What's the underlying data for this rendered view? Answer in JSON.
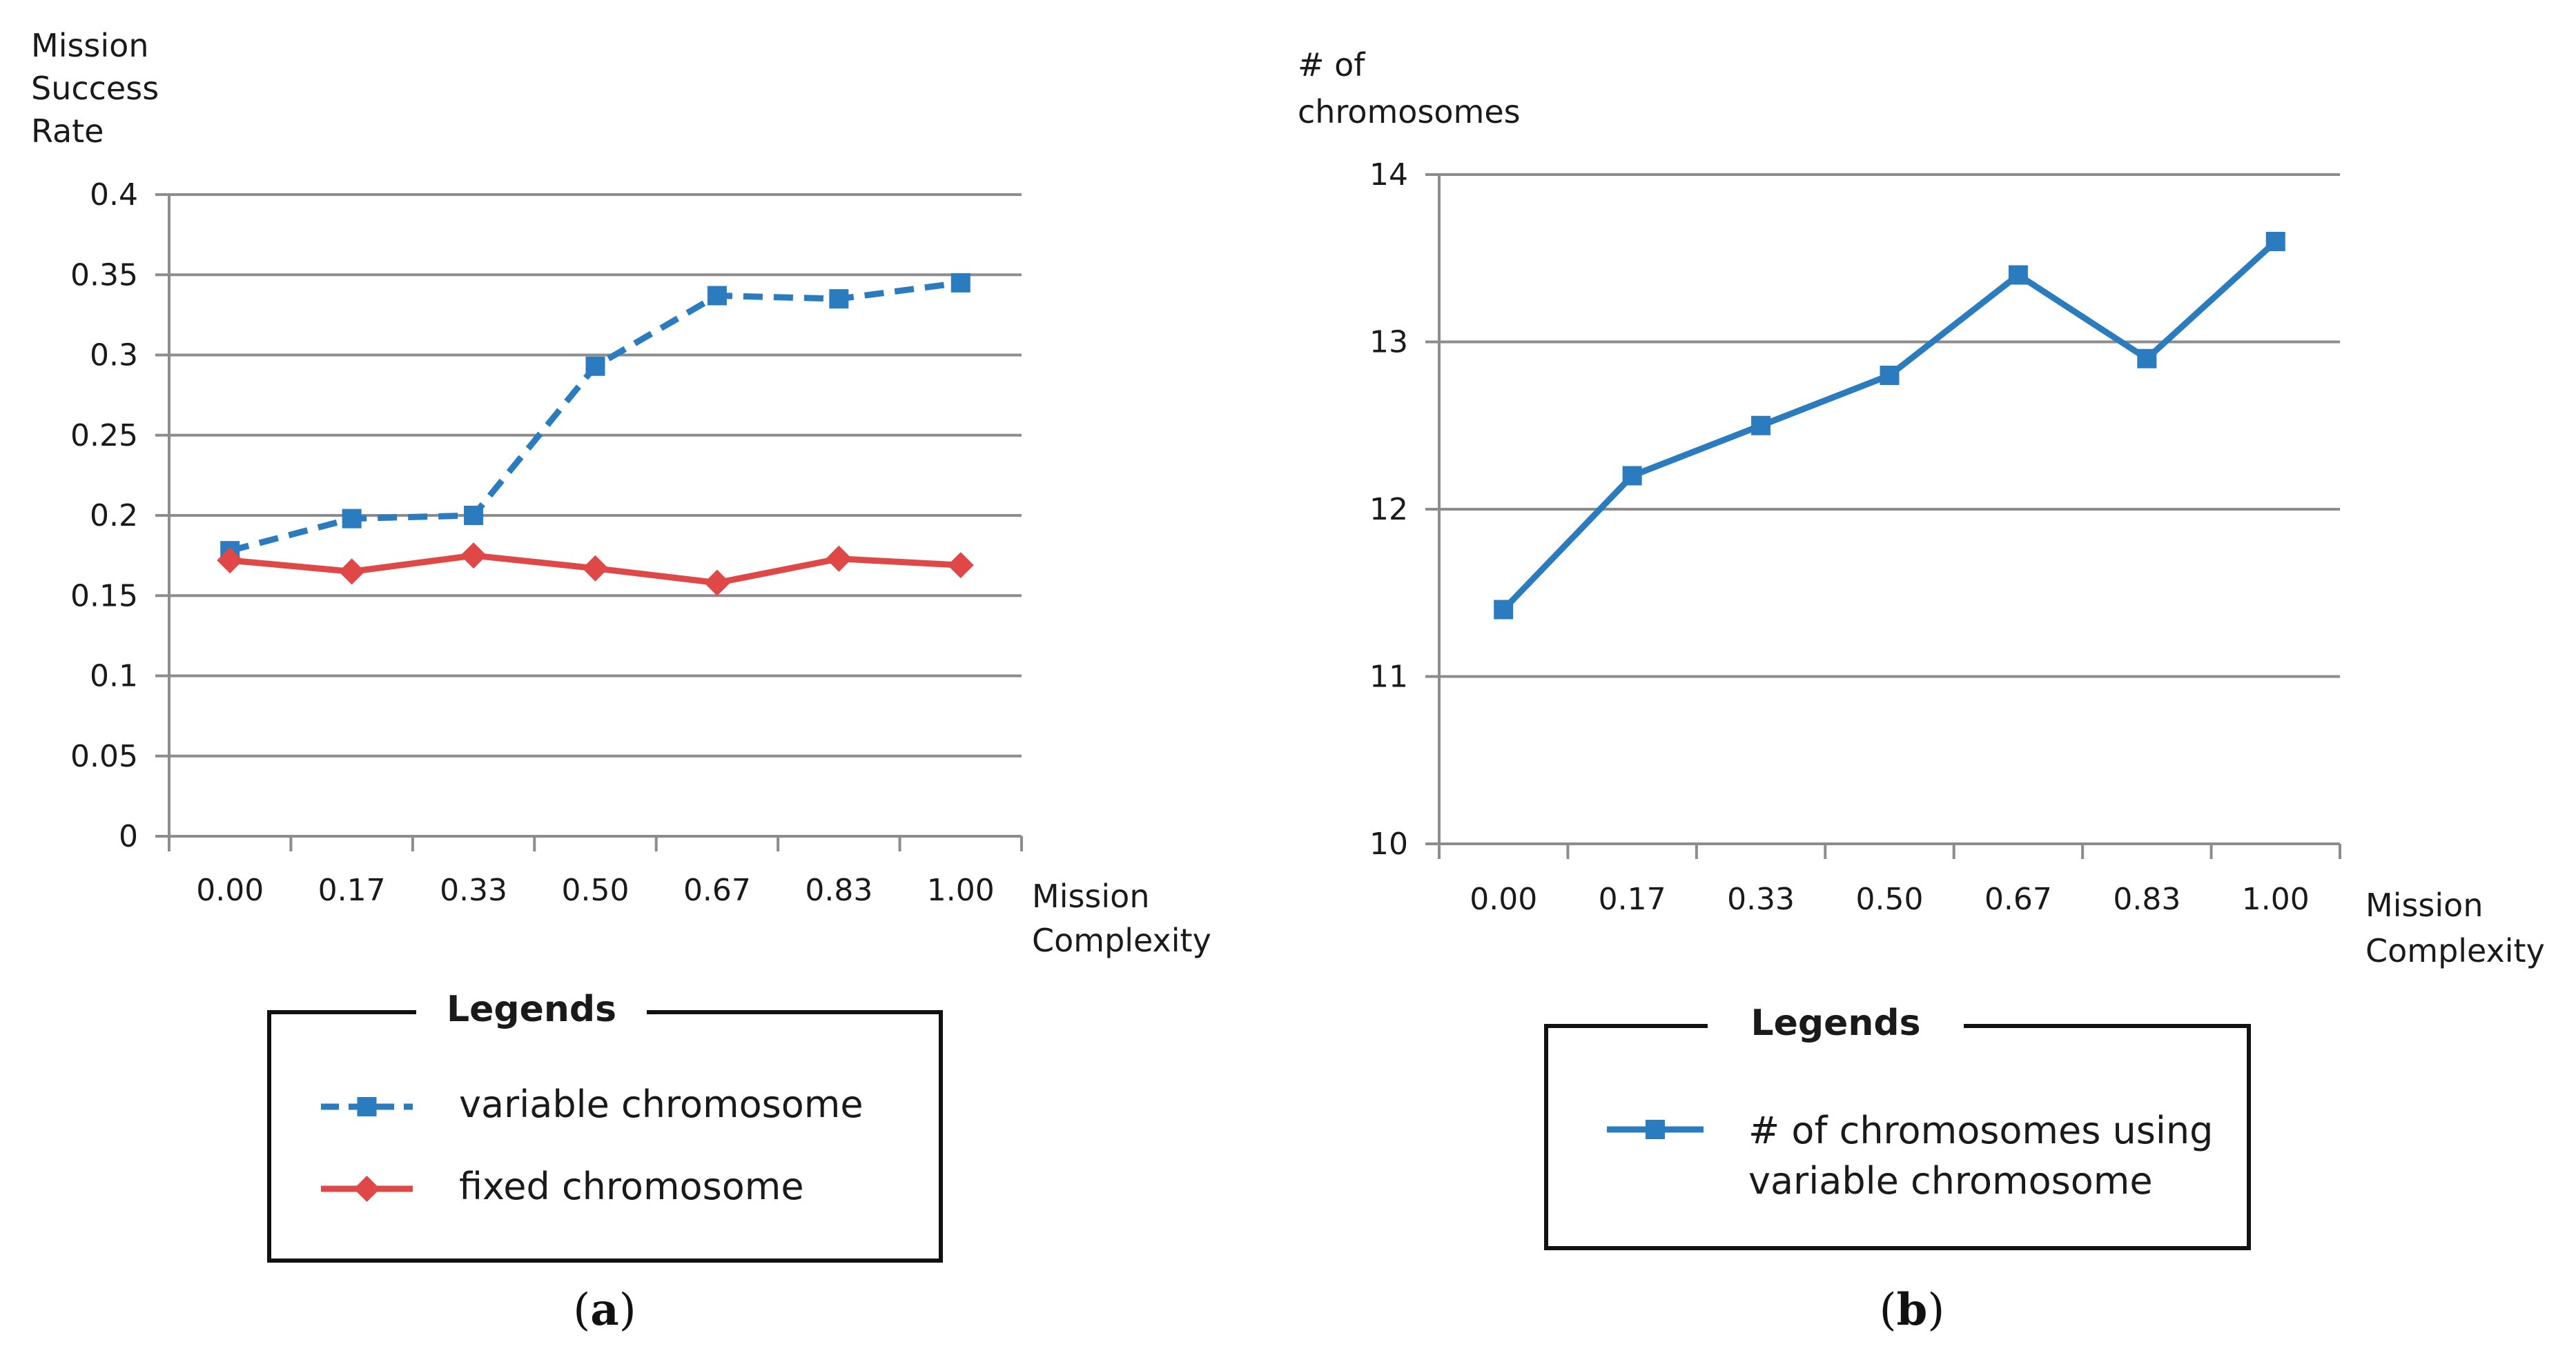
{
  "chart_data": [
    {
      "type": "line",
      "panel": "a",
      "caption_letter": "a",
      "ylabel": [
        "Mission",
        "Success",
        "Rate"
      ],
      "xlabel": [
        "Mission",
        "Complexity"
      ],
      "categories": [
        "0.00",
        "0.17",
        "0.33",
        "0.50",
        "0.67",
        "0.83",
        "1.00"
      ],
      "ylim": [
        0,
        0.4
      ],
      "yticks": [
        "0",
        "0.05",
        "0.1",
        "0.15",
        "0.2",
        "0.25",
        "0.3",
        "0.35",
        "0.4"
      ],
      "series": [
        {
          "name": "variable chromosome",
          "color": "#2b7bbf",
          "marker": "square",
          "dash": true,
          "values": [
            0.178,
            0.198,
            0.2,
            0.293,
            0.337,
            0.335,
            0.345
          ]
        },
        {
          "name": "fixed chromosome",
          "color": "#e04848",
          "marker": "diamond",
          "dash": false,
          "values": [
            0.172,
            0.165,
            0.175,
            0.167,
            0.158,
            0.173,
            0.169
          ]
        }
      ],
      "legend_title": "Legends"
    },
    {
      "type": "line",
      "panel": "b",
      "caption_letter": "b",
      "ylabel": [
        "# of",
        "chromosomes"
      ],
      "xlabel": [
        "Mission",
        "Complexity"
      ],
      "categories": [
        "0.00",
        "0.17",
        "0.33",
        "0.50",
        "0.67",
        "0.83",
        "1.00"
      ],
      "ylim": [
        10,
        14
      ],
      "yticks": [
        "10",
        "11",
        "12",
        "13",
        "14"
      ],
      "series": [
        {
          "name": "# of chromosomes using variable chromosome",
          "legend_lines": [
            "# of chromosomes using",
            "variable chromosome"
          ],
          "color": "#2b7bbf",
          "marker": "square",
          "dash": false,
          "values": [
            11.4,
            12.2,
            12.5,
            12.8,
            13.4,
            12.9,
            13.6
          ]
        }
      ],
      "legend_title": "Legends"
    }
  ]
}
